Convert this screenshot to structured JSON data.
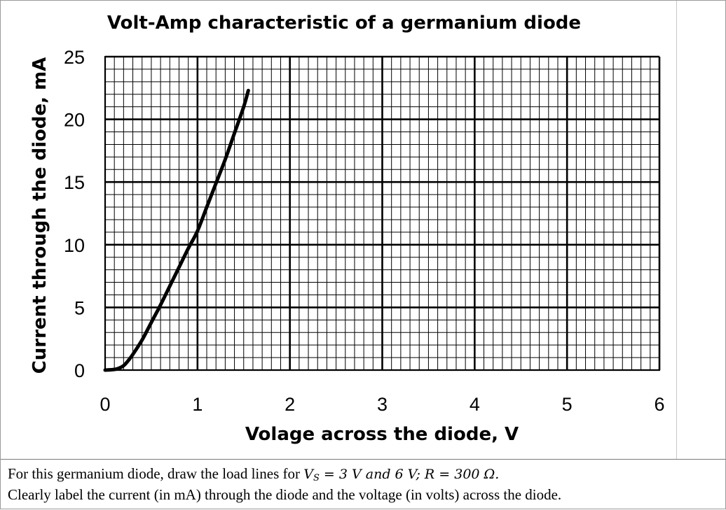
{
  "chart_data": {
    "type": "line",
    "title": "Volt-Amp characteristic of a germanium diode",
    "xlabel": "Volage across the diode, V",
    "ylabel": "Current through the diode, mA",
    "xlim": [
      0,
      6
    ],
    "ylim": [
      0,
      25
    ],
    "x_ticks": [
      "0",
      "1",
      "2",
      "3",
      "4",
      "5",
      "6"
    ],
    "y_ticks": [
      "0",
      "5",
      "10",
      "15",
      "20",
      "25"
    ],
    "x_minor_step": 0.1,
    "y_minor_step": 1,
    "grid": true,
    "legend": "none",
    "series": [
      {
        "color": "#000000",
        "x": [
          0.0,
          0.1,
          0.15,
          0.2,
          0.25,
          0.3,
          0.4,
          0.5,
          0.6,
          0.7,
          0.8,
          0.9,
          1.0,
          1.1,
          1.2,
          1.3,
          1.4,
          1.5,
          1.55
        ],
        "y": [
          0.0,
          0.05,
          0.15,
          0.35,
          0.75,
          1.25,
          2.4,
          3.8,
          5.2,
          6.7,
          8.2,
          9.7,
          11.1,
          13.0,
          14.9,
          16.8,
          18.9,
          21.0,
          22.3
        ]
      }
    ]
  },
  "problem": {
    "line1_prefix": "For this germanium diode, draw the load lines for ",
    "vs_symbol": "V",
    "vs_subscript": "S",
    "line1_math": " = 3 V and 6 V; R = 300 Ω.",
    "line2": "Clearly label the current (in mA) through the diode and the voltage (in volts) across the diode."
  }
}
